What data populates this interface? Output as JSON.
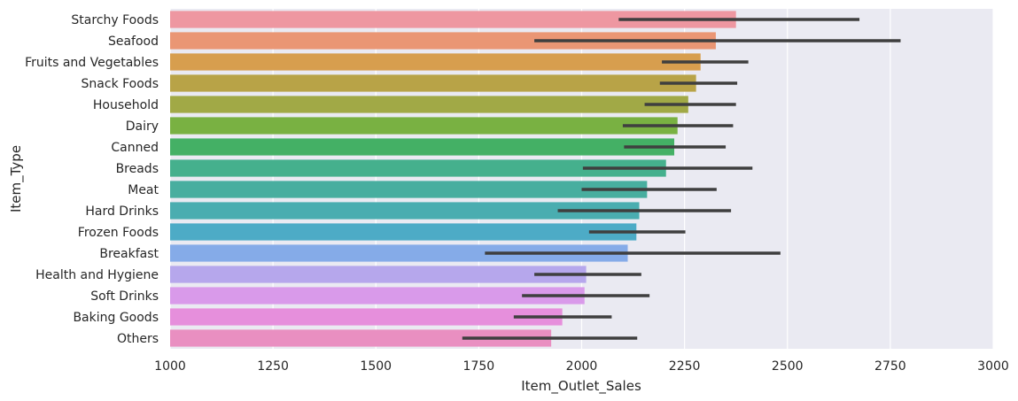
{
  "chart_data": {
    "type": "bar",
    "orientation": "horizontal",
    "title": "",
    "xlabel": "Item_Outlet_Sales",
    "ylabel": "Item_Type",
    "xlim": [
      1000,
      3000
    ],
    "x_ticks": [
      1000,
      1250,
      1500,
      1750,
      2000,
      2250,
      2500,
      2750,
      3000
    ],
    "grid": true,
    "background": "#eaeaf2",
    "error_bar_color": "#3f3f3f",
    "categories": [
      "Starchy Foods",
      "Seafood",
      "Fruits and Vegetables",
      "Snack Foods",
      "Household",
      "Dairy",
      "Canned",
      "Breads",
      "Meat",
      "Hard Drinks",
      "Frozen Foods",
      "Breakfast",
      "Health and Hygiene",
      "Soft Drinks",
      "Baking Goods",
      "Others"
    ],
    "values": [
      2375,
      2326,
      2289,
      2278,
      2259,
      2233,
      2225,
      2205,
      2159,
      2140,
      2133,
      2112,
      2011,
      2007,
      1953,
      1926
    ],
    "ci_low": [
      2090,
      1885,
      2195,
      2190,
      2153,
      2100,
      2103,
      2003,
      2000,
      1942,
      2018,
      1765,
      1885,
      1855,
      1835,
      1710
    ],
    "ci_high": [
      2675,
      2775,
      2405,
      2378,
      2375,
      2368,
      2350,
      2415,
      2328,
      2363,
      2252,
      2483,
      2145,
      2165,
      2073,
      2135
    ],
    "colors": [
      "#ee97a1",
      "#ea9674",
      "#d79e4e",
      "#b8a347",
      "#a1a946",
      "#79b142",
      "#44b065",
      "#45b08d",
      "#48ae9f",
      "#4aadb0",
      "#4dabc6",
      "#85abe8",
      "#b6a7ec",
      "#d99aea",
      "#e68fdc",
      "#e98fc1"
    ]
  }
}
